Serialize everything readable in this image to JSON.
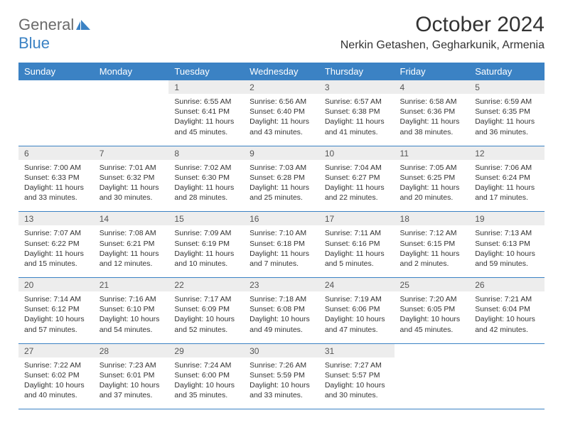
{
  "logo": {
    "part1": "General",
    "part2": "Blue"
  },
  "title": "October 2024",
  "location": "Nerkin Getashen, Gegharkunik, Armenia",
  "colors": {
    "header_bg": "#3b82c4",
    "header_text": "#ffffff",
    "daynum_bg": "#ededed",
    "text": "#333333",
    "row_border": "#3b82c4"
  },
  "weekdays": [
    "Sunday",
    "Monday",
    "Tuesday",
    "Wednesday",
    "Thursday",
    "Friday",
    "Saturday"
  ],
  "days": [
    {
      "n": "",
      "sunrise": "",
      "sunset": "",
      "daylight": "",
      "empty": true
    },
    {
      "n": "",
      "sunrise": "",
      "sunset": "",
      "daylight": "",
      "empty": true
    },
    {
      "n": "1",
      "sunrise": "6:55 AM",
      "sunset": "6:41 PM",
      "daylight": "11 hours and 45 minutes."
    },
    {
      "n": "2",
      "sunrise": "6:56 AM",
      "sunset": "6:40 PM",
      "daylight": "11 hours and 43 minutes."
    },
    {
      "n": "3",
      "sunrise": "6:57 AM",
      "sunset": "6:38 PM",
      "daylight": "11 hours and 41 minutes."
    },
    {
      "n": "4",
      "sunrise": "6:58 AM",
      "sunset": "6:36 PM",
      "daylight": "11 hours and 38 minutes."
    },
    {
      "n": "5",
      "sunrise": "6:59 AM",
      "sunset": "6:35 PM",
      "daylight": "11 hours and 36 minutes."
    },
    {
      "n": "6",
      "sunrise": "7:00 AM",
      "sunset": "6:33 PM",
      "daylight": "11 hours and 33 minutes."
    },
    {
      "n": "7",
      "sunrise": "7:01 AM",
      "sunset": "6:32 PM",
      "daylight": "11 hours and 30 minutes."
    },
    {
      "n": "8",
      "sunrise": "7:02 AM",
      "sunset": "6:30 PM",
      "daylight": "11 hours and 28 minutes."
    },
    {
      "n": "9",
      "sunrise": "7:03 AM",
      "sunset": "6:28 PM",
      "daylight": "11 hours and 25 minutes."
    },
    {
      "n": "10",
      "sunrise": "7:04 AM",
      "sunset": "6:27 PM",
      "daylight": "11 hours and 22 minutes."
    },
    {
      "n": "11",
      "sunrise": "7:05 AM",
      "sunset": "6:25 PM",
      "daylight": "11 hours and 20 minutes."
    },
    {
      "n": "12",
      "sunrise": "7:06 AM",
      "sunset": "6:24 PM",
      "daylight": "11 hours and 17 minutes."
    },
    {
      "n": "13",
      "sunrise": "7:07 AM",
      "sunset": "6:22 PM",
      "daylight": "11 hours and 15 minutes."
    },
    {
      "n": "14",
      "sunrise": "7:08 AM",
      "sunset": "6:21 PM",
      "daylight": "11 hours and 12 minutes."
    },
    {
      "n": "15",
      "sunrise": "7:09 AM",
      "sunset": "6:19 PM",
      "daylight": "11 hours and 10 minutes."
    },
    {
      "n": "16",
      "sunrise": "7:10 AM",
      "sunset": "6:18 PM",
      "daylight": "11 hours and 7 minutes."
    },
    {
      "n": "17",
      "sunrise": "7:11 AM",
      "sunset": "6:16 PM",
      "daylight": "11 hours and 5 minutes."
    },
    {
      "n": "18",
      "sunrise": "7:12 AM",
      "sunset": "6:15 PM",
      "daylight": "11 hours and 2 minutes."
    },
    {
      "n": "19",
      "sunrise": "7:13 AM",
      "sunset": "6:13 PM",
      "daylight": "10 hours and 59 minutes."
    },
    {
      "n": "20",
      "sunrise": "7:14 AM",
      "sunset": "6:12 PM",
      "daylight": "10 hours and 57 minutes."
    },
    {
      "n": "21",
      "sunrise": "7:16 AM",
      "sunset": "6:10 PM",
      "daylight": "10 hours and 54 minutes."
    },
    {
      "n": "22",
      "sunrise": "7:17 AM",
      "sunset": "6:09 PM",
      "daylight": "10 hours and 52 minutes."
    },
    {
      "n": "23",
      "sunrise": "7:18 AM",
      "sunset": "6:08 PM",
      "daylight": "10 hours and 49 minutes."
    },
    {
      "n": "24",
      "sunrise": "7:19 AM",
      "sunset": "6:06 PM",
      "daylight": "10 hours and 47 minutes."
    },
    {
      "n": "25",
      "sunrise": "7:20 AM",
      "sunset": "6:05 PM",
      "daylight": "10 hours and 45 minutes."
    },
    {
      "n": "26",
      "sunrise": "7:21 AM",
      "sunset": "6:04 PM",
      "daylight": "10 hours and 42 minutes."
    },
    {
      "n": "27",
      "sunrise": "7:22 AM",
      "sunset": "6:02 PM",
      "daylight": "10 hours and 40 minutes."
    },
    {
      "n": "28",
      "sunrise": "7:23 AM",
      "sunset": "6:01 PM",
      "daylight": "10 hours and 37 minutes."
    },
    {
      "n": "29",
      "sunrise": "7:24 AM",
      "sunset": "6:00 PM",
      "daylight": "10 hours and 35 minutes."
    },
    {
      "n": "30",
      "sunrise": "7:26 AM",
      "sunset": "5:59 PM",
      "daylight": "10 hours and 33 minutes."
    },
    {
      "n": "31",
      "sunrise": "7:27 AM",
      "sunset": "5:57 PM",
      "daylight": "10 hours and 30 minutes."
    },
    {
      "n": "",
      "sunrise": "",
      "sunset": "",
      "daylight": "",
      "empty": true
    },
    {
      "n": "",
      "sunrise": "",
      "sunset": "",
      "daylight": "",
      "empty": true
    }
  ],
  "labels": {
    "sunrise": "Sunrise:",
    "sunset": "Sunset:",
    "daylight": "Daylight:"
  }
}
